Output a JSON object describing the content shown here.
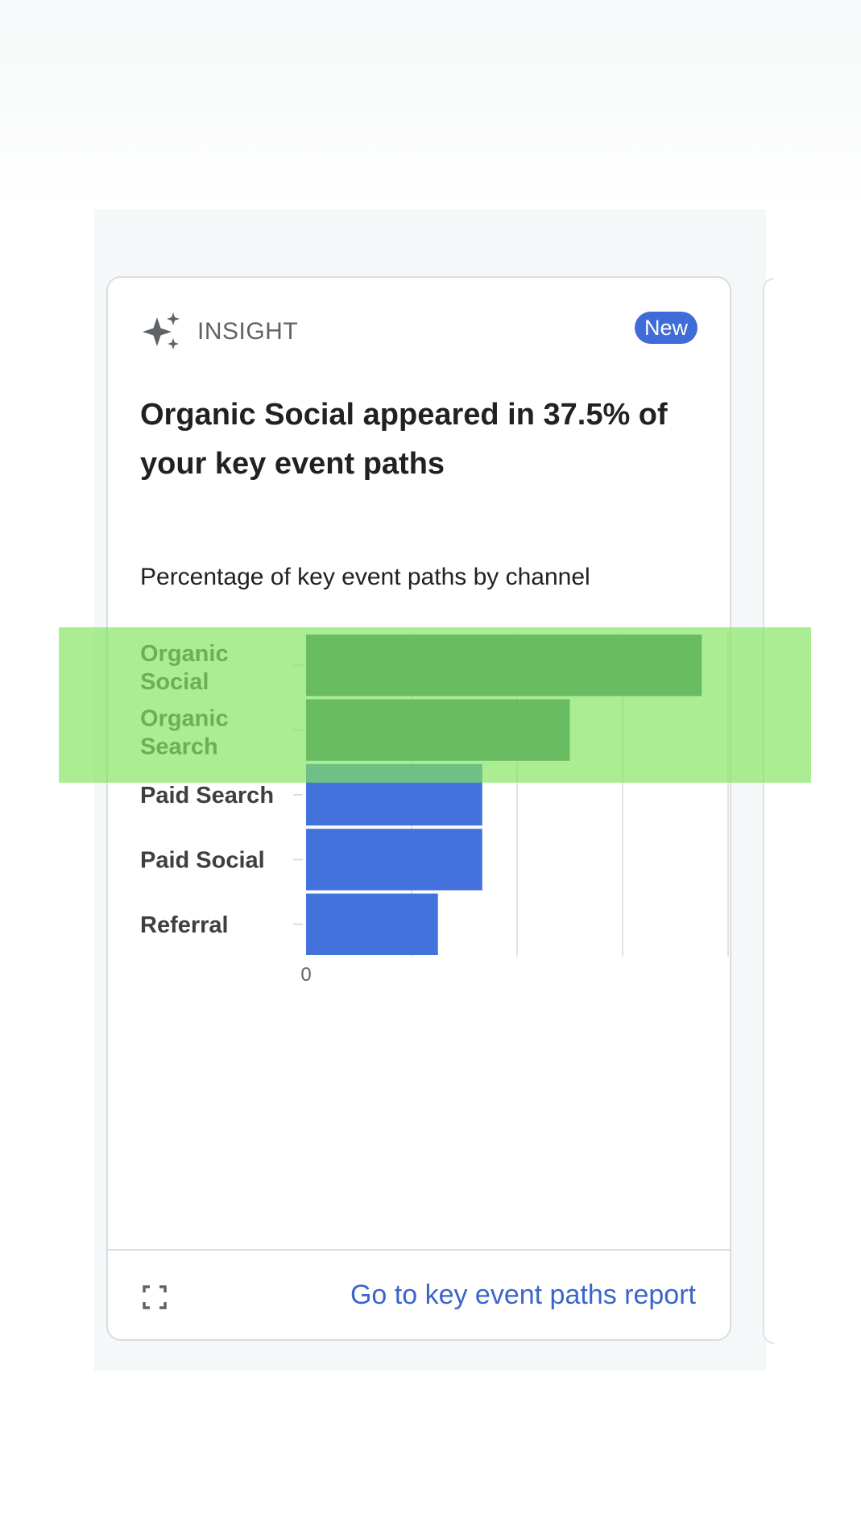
{
  "card": {
    "eyebrow_icon": "sparkle-icon",
    "eyebrow_label": "INSIGHT",
    "badge": "New",
    "title": "Organic Social appeared in 37.5% of your key event paths",
    "chart_subtitle": "Percentage of key event paths by channel",
    "footer": {
      "expand_icon": "expand-icon",
      "link_label": "Go to key event paths report"
    }
  },
  "colors": {
    "bar_highlighted": "#36686b",
    "bar_default": "#4472dc",
    "badge": "#3f6cd8",
    "link": "#3b66c9",
    "highlight_overlay": "#83e45f"
  },
  "chart_data": {
    "type": "bar",
    "orientation": "horizontal",
    "title": "Percentage of key event paths by channel",
    "categories": [
      "Organic Social",
      "Organic Search",
      "Paid Search",
      "Paid Social",
      "Referral"
    ],
    "values": [
      0.375,
      0.25,
      0.167,
      0.167,
      0.125
    ],
    "highlighted_categories": [
      "Organic Social",
      "Organic Search"
    ],
    "xlim": [
      0,
      0.4
    ],
    "x_ticks": [
      0,
      0.1,
      0.2,
      0.3,
      0.4
    ],
    "x_tick_labels": [
      "0"
    ],
    "grid": true,
    "legend": "none"
  }
}
